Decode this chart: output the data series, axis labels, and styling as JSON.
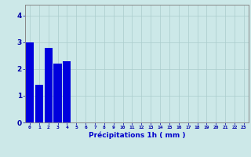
{
  "title": "",
  "xlabel": "Précipitations 1h ( mm )",
  "ylabel": "",
  "categories": [
    0,
    1,
    2,
    3,
    4,
    5,
    6,
    7,
    8,
    9,
    10,
    11,
    12,
    13,
    14,
    15,
    16,
    17,
    18,
    19,
    20,
    21,
    22,
    23
  ],
  "values": [
    3.0,
    1.4,
    2.8,
    2.2,
    2.3,
    0,
    0,
    0,
    0,
    0,
    0,
    0,
    0,
    0,
    0,
    0,
    0,
    0,
    0,
    0,
    0,
    0,
    0,
    0
  ],
  "bar_color": "#0000dd",
  "background_color": "#cce8e8",
  "grid_color": "#aacccc",
  "tick_color": "#0000aa",
  "label_color": "#0000cc",
  "ylim": [
    0,
    4.4
  ],
  "yticks": [
    0,
    1,
    2,
    3,
    4
  ],
  "xlim": [
    -0.5,
    23.5
  ]
}
